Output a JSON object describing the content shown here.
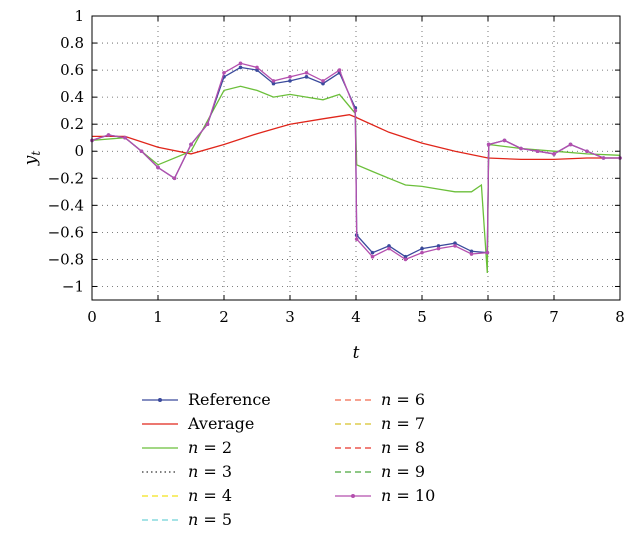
{
  "chart_data": {
    "type": "line",
    "title": "",
    "xlabel": "t",
    "ylabel": "y",
    "ylabel_subscript": "t",
    "xlim": [
      0,
      8
    ],
    "ylim": [
      -1.1,
      1
    ],
    "xticks": [
      0,
      1,
      2,
      3,
      4,
      5,
      6,
      7,
      8
    ],
    "yticks": [
      1,
      0.8,
      0.6,
      0.4,
      0.2,
      0,
      -0.2,
      -0.4,
      -0.6,
      -0.8,
      -1
    ],
    "ytick_labels": [
      "1",
      "0.8",
      "0.6",
      "0.4",
      "0.2",
      "0",
      "−0.2",
      "−0.4",
      "−0.6",
      "−0.8",
      "−1"
    ],
    "grid": true,
    "legend_position": "bottom",
    "series": [
      {
        "name": "Reference",
        "color": "#3a4a9c",
        "style": "solid-dot",
        "x": [
          0,
          0.25,
          0.5,
          0.75,
          1,
          1.25,
          1.5,
          1.75,
          2,
          2.25,
          2.5,
          2.75,
          3,
          3.25,
          3.5,
          3.75,
          3.99,
          4.01,
          4.25,
          4.5,
          4.75,
          5,
          5.25,
          5.5,
          5.75,
          5.99,
          6.01,
          6.25,
          6.5,
          6.75,
          7,
          7.25,
          7.5,
          7.75,
          8
        ],
        "y": [
          0.08,
          0.12,
          0.1,
          0.0,
          -0.12,
          -0.2,
          0.05,
          0.2,
          0.55,
          0.62,
          0.6,
          0.5,
          0.52,
          0.55,
          0.5,
          0.58,
          0.32,
          -0.62,
          -0.75,
          -0.7,
          -0.78,
          -0.72,
          -0.7,
          -0.68,
          -0.74,
          -0.75,
          0.05,
          0.08,
          0.02,
          0.0,
          -0.02,
          0.05,
          0.0,
          -0.05,
          -0.05
        ]
      },
      {
        "name": "Average",
        "color": "#e0261b",
        "style": "solid",
        "x": [
          0,
          0.5,
          1,
          1.5,
          2,
          2.5,
          3,
          3.5,
          3.9,
          4,
          4.5,
          5,
          5.5,
          6,
          6.5,
          7,
          7.5,
          8
        ],
        "y": [
          0.11,
          0.11,
          0.03,
          -0.02,
          0.05,
          0.13,
          0.2,
          0.24,
          0.27,
          0.25,
          0.14,
          0.06,
          0.0,
          -0.05,
          -0.06,
          -0.06,
          -0.05,
          -0.05
        ]
      },
      {
        "name": "n = 2",
        "label_prefix": "n",
        "label_value": "= 2",
        "color": "#6bbf3a",
        "style": "solid",
        "x": [
          0,
          0.5,
          1,
          1.5,
          2,
          2.25,
          2.5,
          2.75,
          3,
          3.25,
          3.5,
          3.75,
          3.99,
          4.01,
          4.25,
          4.5,
          4.75,
          5,
          5.25,
          5.5,
          5.75,
          5.9,
          5.99,
          6.01,
          6.5,
          7,
          7.5,
          8
        ],
        "y": [
          0.08,
          0.1,
          -0.1,
          0.0,
          0.45,
          0.48,
          0.45,
          0.4,
          0.42,
          0.4,
          0.38,
          0.42,
          0.28,
          -0.1,
          -0.15,
          -0.2,
          -0.25,
          -0.26,
          -0.28,
          -0.3,
          -0.3,
          -0.25,
          -0.9,
          0.05,
          0.02,
          0.0,
          -0.02,
          -0.03
        ]
      },
      {
        "name": "n = 3",
        "label_prefix": "n",
        "label_value": "= 3",
        "color": "#333333",
        "style": "dotted",
        "x": [],
        "y": []
      },
      {
        "name": "n = 4",
        "label_prefix": "n",
        "label_value": "= 4",
        "color": "#f2e21a",
        "style": "dashed",
        "x": [],
        "y": []
      },
      {
        "name": "n = 5",
        "label_prefix": "n",
        "label_value": "= 5",
        "color": "#6fd2d8",
        "style": "dashed",
        "x": [],
        "y": []
      },
      {
        "name": "n = 6",
        "label_prefix": "n",
        "label_value": "= 6",
        "color": "#f26a4e",
        "style": "dashed",
        "x": [],
        "y": []
      },
      {
        "name": "n = 7",
        "label_prefix": "n",
        "label_value": "= 7",
        "color": "#d8c22a",
        "style": "dashed",
        "x": [],
        "y": []
      },
      {
        "name": "n = 8",
        "label_prefix": "n",
        "label_value": "= 8",
        "color": "#e8342a",
        "style": "dashed",
        "x": [],
        "y": []
      },
      {
        "name": "n = 9",
        "label_prefix": "n",
        "label_value": "= 9",
        "color": "#4aa83c",
        "style": "dashed",
        "x": [],
        "y": []
      },
      {
        "name": "n = 10",
        "label_prefix": "n",
        "label_value": "= 10",
        "color": "#b44fae",
        "style": "solid-dot",
        "x": [
          0,
          0.25,
          0.5,
          0.75,
          1,
          1.25,
          1.5,
          1.75,
          2,
          2.25,
          2.5,
          2.75,
          3,
          3.25,
          3.5,
          3.75,
          3.99,
          4.01,
          4.25,
          4.5,
          4.75,
          5,
          5.25,
          5.5,
          5.75,
          5.99,
          6.01,
          6.25,
          6.5,
          6.75,
          7,
          7.25,
          7.5,
          7.75,
          8
        ],
        "y": [
          0.08,
          0.12,
          0.1,
          0.0,
          -0.12,
          -0.2,
          0.05,
          0.2,
          0.58,
          0.65,
          0.62,
          0.52,
          0.55,
          0.58,
          0.52,
          0.6,
          0.3,
          -0.65,
          -0.78,
          -0.72,
          -0.8,
          -0.75,
          -0.72,
          -0.7,
          -0.76,
          -0.75,
          0.05,
          0.08,
          0.02,
          0.0,
          -0.02,
          0.05,
          0.0,
          -0.05,
          -0.05
        ]
      }
    ]
  }
}
